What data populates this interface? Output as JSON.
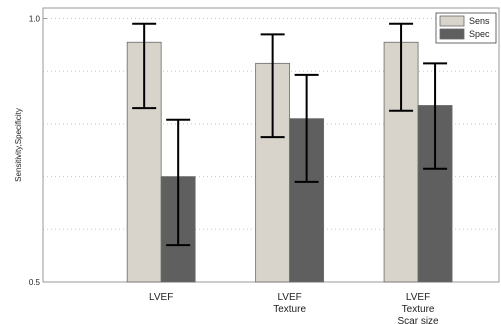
{
  "chart_data": {
    "type": "bar",
    "title": "",
    "xlabel": "",
    "ylabel": "Sensitivity,Specificity",
    "ylim": [
      0.5,
      1.02
    ],
    "yticks": [
      {
        "value": 1.0,
        "label": "1.0"
      },
      {
        "value": 0.5,
        "label": "0.5"
      }
    ],
    "grid": true,
    "legend_position": "top-right",
    "categories": [
      [
        "LVEF"
      ],
      [
        "LVEF",
        "Texture"
      ],
      [
        "LVEF",
        "Texture",
        "Scar size"
      ]
    ],
    "series": [
      {
        "name": "Sens",
        "color": "#d8d3cb",
        "values": [
          0.955,
          0.915,
          0.955
        ],
        "err_low": [
          0.83,
          0.775,
          0.825
        ],
        "err_high": [
          0.99,
          0.97,
          0.99
        ]
      },
      {
        "name": "Spec",
        "color": "#5f5f5f",
        "values": [
          0.7,
          0.81,
          0.835
        ],
        "err_low": [
          0.57,
          0.69,
          0.715
        ],
        "err_high": [
          0.808,
          0.893,
          0.915
        ]
      }
    ]
  }
}
